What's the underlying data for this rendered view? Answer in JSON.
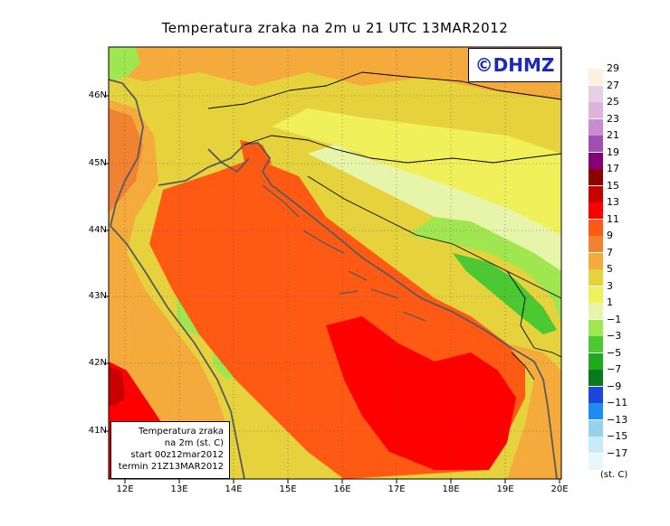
{
  "title": "Temperatura zraka na 2m u 21 UTC 13MAR2012",
  "logo": "©DHMZ",
  "info_box": [
    "Temperatura zraka",
    "na 2m (st. C)",
    "start 00z12mar2012",
    "termin 21Z13MAR2012"
  ],
  "lat_labels": [
    "46N",
    "45N",
    "44N",
    "43N",
    "42N",
    "41N"
  ],
  "lon_labels": [
    "12E",
    "13E",
    "14E",
    "15E",
    "16E",
    "17E",
    "18E",
    "19E",
    "20E"
  ],
  "legend": {
    "unit": "(st. C)",
    "labels": [
      "29",
      "27",
      "25",
      "23",
      "21",
      "19",
      "17",
      "15",
      "13",
      "11",
      "9",
      "7",
      "5",
      "3",
      "1",
      "−1",
      "−3",
      "−5",
      "−7",
      "−9",
      "−11",
      "−13",
      "−15",
      "−17"
    ],
    "colors": [
      "#fff0e0",
      "#e6d0e6",
      "#dcb4dc",
      "#c88cd2",
      "#a050b4",
      "#820078",
      "#8c0000",
      "#c80000",
      "#ff0000",
      "#ff5a14",
      "#f08232",
      "#f5aa3c",
      "#e6d23c",
      "#f0f05a",
      "#e6f5aa",
      "#a0e650",
      "#4bc832",
      "#1eaa1e",
      "#0a781e",
      "#1e46dc",
      "#1e8cf0",
      "#96d2f0",
      "#c8ebf5",
      "#e6f8fa"
    ]
  },
  "colors": {
    "coast": "#5a5a5a",
    "border": "#000000",
    "grid": "#555555",
    "logo_text": "#1a2ab8"
  },
  "chart_data": {
    "type": "heatmap",
    "title": "Temperatura zraka na 2m u 21 UTC 13MAR2012",
    "variable": "Temperatura zraka na 2m (st. C)",
    "valid": "21Z13MAR2012",
    "start": "00z12mar2012",
    "lon_range": [
      11.7,
      20.0
    ],
    "lat_range": [
      40.3,
      46.75
    ],
    "x_ticks": [
      "12E",
      "13E",
      "14E",
      "15E",
      "16E",
      "17E",
      "18E",
      "19E",
      "20E"
    ],
    "y_ticks": [
      "46N",
      "45N",
      "44N",
      "43N",
      "42N",
      "41N"
    ],
    "scale": [
      -17,
      -15,
      -13,
      -11,
      -9,
      -7,
      -5,
      -3,
      -1,
      1,
      3,
      5,
      7,
      9,
      11,
      13,
      15,
      17,
      19,
      21,
      23,
      25,
      27,
      29
    ]
  }
}
